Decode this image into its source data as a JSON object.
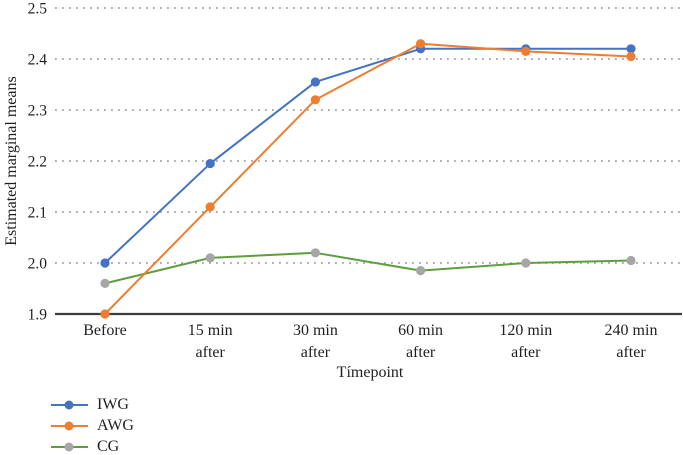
{
  "chart_data": {
    "type": "line",
    "title": "",
    "xlabel": "Tímepoint",
    "ylabel": "Estimated marginal means",
    "categories": [
      [
        "Before"
      ],
      [
        "15 min",
        "after"
      ],
      [
        "30 min",
        "after"
      ],
      [
        "60 min",
        "after"
      ],
      [
        "120 min",
        "after"
      ],
      [
        "240 min",
        "after"
      ]
    ],
    "series": [
      {
        "name": "IWG",
        "color": "#4472C4",
        "marker_color": "#4472C4",
        "values": [
          2.0,
          2.195,
          2.355,
          2.42,
          2.42,
          2.42
        ]
      },
      {
        "name": "AWG",
        "color": "#ED7D31",
        "marker_color": "#ED7D31",
        "values": [
          1.9,
          2.11,
          2.32,
          2.43,
          2.415,
          2.405
        ]
      },
      {
        "name": "CG",
        "color": "#5F9E3F",
        "marker_color": "#A6A6A6",
        "values": [
          1.96,
          2.01,
          2.02,
          1.985,
          2.0,
          2.005
        ]
      }
    ],
    "ylim": [
      1.9,
      2.5
    ],
    "yticks": [
      1.9,
      2.0,
      2.1,
      2.2,
      2.3,
      2.4,
      2.5
    ],
    "grid": "horizontal dotted gridlines at each y tick except baseline",
    "legend_position": "bottom-left",
    "colors": {
      "gridline": "#a3a3a3",
      "axis_line": "#3d3d3d",
      "text": "#1f1f1f"
    }
  }
}
